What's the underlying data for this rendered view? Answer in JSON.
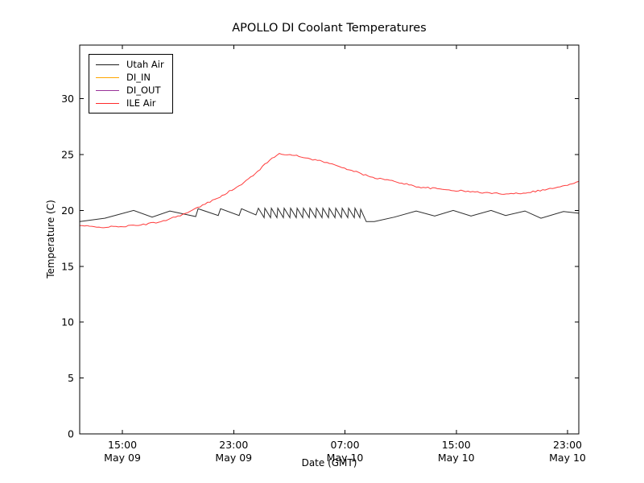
{
  "chart_data": {
    "type": "line",
    "title": "APOLLO DI Coolant Temperatures",
    "xlabel": "Date (GMT)",
    "ylabel": "Temperature (C)",
    "grid": false,
    "legend_position": "upper-left",
    "xlim_hours_from_may09_0000": [
      11.93,
      47.81
    ],
    "ylim": [
      0,
      34.8
    ],
    "y_ticks": [
      0,
      5,
      10,
      15,
      20,
      25,
      30
    ],
    "x_ticks": [
      {
        "hour": 15,
        "time": "15:00",
        "date": "May 09"
      },
      {
        "hour": 23,
        "time": "23:00",
        "date": "May 09"
      },
      {
        "hour": 31,
        "time": "07:00",
        "date": "May 10"
      },
      {
        "hour": 39,
        "time": "15:00",
        "date": "May 10"
      },
      {
        "hour": 47,
        "time": "23:00",
        "date": "May 10"
      }
    ],
    "frame_color": "#000000",
    "series": [
      {
        "name": "Utah Air",
        "color": "#1a1a1a",
        "noise_amplitude": 0,
        "points": [
          [
            11.93,
            19.0
          ],
          [
            13.73,
            19.3
          ],
          [
            15.81,
            20.0
          ],
          [
            17.14,
            19.4
          ],
          [
            18.41,
            19.95
          ],
          [
            20.27,
            19.45
          ],
          [
            20.44,
            20.15
          ],
          [
            21.89,
            19.55
          ],
          [
            22.06,
            20.15
          ],
          [
            23.39,
            19.55
          ],
          [
            23.56,
            20.15
          ],
          [
            24.6,
            19.6
          ],
          [
            24.78,
            20.2
          ],
          [
            25.19,
            19.35
          ],
          [
            25.24,
            20.2
          ],
          [
            25.65,
            19.35
          ],
          [
            25.71,
            20.2
          ],
          [
            26.11,
            19.35
          ],
          [
            26.17,
            20.2
          ],
          [
            26.57,
            19.35
          ],
          [
            26.63,
            20.2
          ],
          [
            27.04,
            19.35
          ],
          [
            27.09,
            20.2
          ],
          [
            27.5,
            19.35
          ],
          [
            27.56,
            20.2
          ],
          [
            27.96,
            19.35
          ],
          [
            28.02,
            20.2
          ],
          [
            28.43,
            19.35
          ],
          [
            28.48,
            20.2
          ],
          [
            28.89,
            19.35
          ],
          [
            28.95,
            20.2
          ],
          [
            29.35,
            19.35
          ],
          [
            29.41,
            20.2
          ],
          [
            29.81,
            19.35
          ],
          [
            29.87,
            20.2
          ],
          [
            30.28,
            19.35
          ],
          [
            30.34,
            20.2
          ],
          [
            30.74,
            19.35
          ],
          [
            30.8,
            20.2
          ],
          [
            31.2,
            19.35
          ],
          [
            31.26,
            20.2
          ],
          [
            31.67,
            19.35
          ],
          [
            31.72,
            20.2
          ],
          [
            32.07,
            19.35
          ],
          [
            32.13,
            20.1
          ],
          [
            32.53,
            19.0
          ],
          [
            33.11,
            19.0
          ],
          [
            34.56,
            19.4
          ],
          [
            36.12,
            19.95
          ],
          [
            37.45,
            19.5
          ],
          [
            38.78,
            20.0
          ],
          [
            40.06,
            19.5
          ],
          [
            41.5,
            20.0
          ],
          [
            42.55,
            19.55
          ],
          [
            43.94,
            19.95
          ],
          [
            45.09,
            19.3
          ],
          [
            46.71,
            19.9
          ],
          [
            47.81,
            19.75
          ]
        ]
      },
      {
        "name": "DI_IN",
        "color": "#ffa500",
        "noise_amplitude": 0,
        "points": [
          [
            11.93,
            0
          ],
          [
            47.81,
            0
          ]
        ]
      },
      {
        "name": "DI_OUT",
        "color": "#993399",
        "noise_amplitude": 0,
        "points": [
          [
            11.93,
            0
          ],
          [
            47.81,
            0
          ]
        ]
      },
      {
        "name": "ILE Air",
        "color": "#ff2a2a",
        "noise_amplitude": 0.07,
        "points": [
          [
            11.93,
            18.65
          ],
          [
            13.15,
            18.5
          ],
          [
            14.88,
            18.55
          ],
          [
            16.33,
            18.7
          ],
          [
            17.78,
            19.0
          ],
          [
            19.69,
            19.8
          ],
          [
            21.66,
            21.0
          ],
          [
            23.56,
            22.3
          ],
          [
            24.72,
            23.5
          ],
          [
            25.59,
            24.5
          ],
          [
            26.28,
            25.1
          ],
          [
            27.04,
            25.0
          ],
          [
            28.19,
            24.7
          ],
          [
            29.35,
            24.4
          ],
          [
            30.97,
            23.8
          ],
          [
            32.82,
            23.0
          ],
          [
            34.56,
            22.6
          ],
          [
            36.3,
            22.1
          ],
          [
            38.32,
            21.85
          ],
          [
            40.35,
            21.65
          ],
          [
            42.08,
            21.5
          ],
          [
            43.82,
            21.55
          ],
          [
            45.56,
            21.9
          ],
          [
            47.0,
            22.25
          ],
          [
            47.81,
            22.6
          ]
        ]
      }
    ]
  }
}
